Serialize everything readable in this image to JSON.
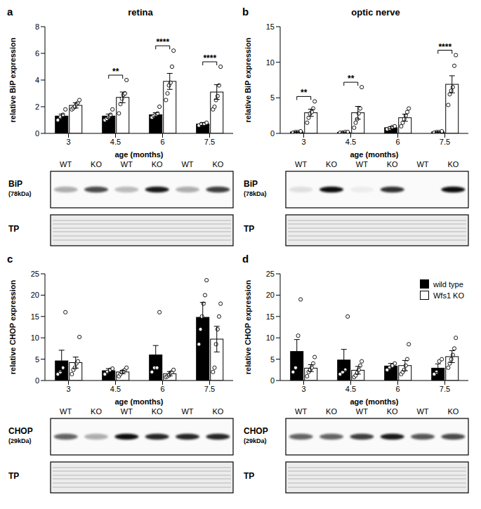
{
  "chart_data": [
    {
      "panel": "a",
      "type": "bar",
      "title": "retina",
      "x_label": "age (months)",
      "y_label": "relative BiP expression",
      "categories": [
        "3",
        "4.5",
        "6",
        "7.5"
      ],
      "ylim": [
        0,
        8
      ],
      "yticks": [
        0,
        2,
        4,
        6,
        8
      ],
      "series": [
        {
          "name": "wild type",
          "color": "#000000",
          "values": [
            1.3,
            1.3,
            1.4,
            0.7
          ],
          "error": [
            0.15,
            0.15,
            0.15,
            0.1
          ],
          "points": [
            [
              1.0,
              1.2,
              1.4,
              1.8
            ],
            [
              1.0,
              1.1,
              1.2,
              1.4,
              1.8
            ],
            [
              1.2,
              1.3,
              1.4,
              1.5,
              2.0
            ],
            [
              0.6,
              0.7,
              0.7,
              0.8
            ]
          ]
        },
        {
          "name": "Wfs1 KO",
          "color": "#ffffff",
          "values": [
            2.1,
            2.7,
            3.9,
            3.1
          ],
          "error": [
            0.2,
            0.4,
            0.6,
            0.55
          ],
          "points": [
            [
              1.8,
              1.9,
              2.0,
              2.2,
              2.3,
              2.5
            ],
            [
              1.5,
              2.2,
              2.6,
              2.9,
              3.0,
              4.0
            ],
            [
              2.5,
              3.0,
              3.6,
              3.8,
              5.0,
              6.2
            ],
            [
              1.8,
              2.0,
              2.5,
              2.8,
              3.6,
              5.0
            ]
          ]
        }
      ],
      "significance": [
        null,
        "**",
        "****",
        "****"
      ],
      "blot": {
        "protein": "BiP",
        "size": "(78kDa)",
        "loading": "TP",
        "lanes": [
          "WT",
          "KO",
          "WT",
          "KO",
          "WT",
          "KO"
        ],
        "band_intensity": [
          0.3,
          0.7,
          0.25,
          0.9,
          0.3,
          0.75
        ]
      }
    },
    {
      "panel": "b",
      "type": "bar",
      "title": "optic nerve",
      "x_label": "age (months)",
      "y_label": "relative BiP expression",
      "categories": [
        "3",
        "4.5",
        "6",
        "7.5"
      ],
      "ylim": [
        0,
        15
      ],
      "yticks": [
        0,
        5,
        10,
        15
      ],
      "series": [
        {
          "name": "wild type",
          "color": "#000000",
          "values": [
            0.2,
            0.15,
            0.8,
            0.2
          ],
          "error": [
            0.05,
            0.05,
            0.15,
            0.05
          ],
          "points": [
            [
              0.1,
              0.2,
              0.2,
              0.3
            ],
            [
              0.1,
              0.1,
              0.2,
              0.2
            ],
            [
              0.6,
              0.7,
              0.9,
              1.0
            ],
            [
              0.1,
              0.2,
              0.2,
              0.3
            ]
          ]
        },
        {
          "name": "Wfs1 KO",
          "color": "#ffffff",
          "values": [
            2.9,
            2.9,
            2.2,
            6.9
          ],
          "error": [
            0.5,
            0.9,
            0.5,
            1.2
          ],
          "points": [
            [
              1.5,
              2.2,
              2.8,
              3.0,
              3.5,
              4.5
            ],
            [
              0.8,
              1.5,
              2.0,
              2.8,
              3.5,
              6.5
            ],
            [
              1.0,
              1.5,
              2.0,
              2.5,
              3.0,
              3.5
            ],
            [
              4.0,
              5.5,
              6.0,
              6.5,
              9.5,
              11.0
            ]
          ]
        }
      ],
      "significance": [
        "**",
        "**",
        null,
        "****"
      ],
      "blot": {
        "protein": "BiP",
        "size": "(78kDa)",
        "loading": "TP",
        "lanes": [
          "WT",
          "KO",
          "WT",
          "KO",
          "WT",
          "KO"
        ],
        "band_intensity": [
          0.1,
          0.95,
          0.05,
          0.8,
          0.0,
          0.95
        ]
      }
    },
    {
      "panel": "c",
      "type": "bar",
      "x_label": "age (months)",
      "y_label": "relative CHOP expression",
      "categories": [
        "3",
        "4.5",
        "6",
        "7.5"
      ],
      "ylim": [
        0,
        25
      ],
      "yticks": [
        0,
        5,
        10,
        15,
        20,
        25
      ],
      "series": [
        {
          "name": "wild type",
          "color": "#000000",
          "values": [
            4.6,
            2.3,
            6.0,
            14.8
          ],
          "error": [
            2.5,
            0.5,
            2.2,
            3.5
          ],
          "points": [
            [
              1.5,
              2.0,
              3.0,
              16.0
            ],
            [
              1.5,
              2.0,
              2.5,
              2.8
            ],
            [
              2.0,
              3.0,
              3.0,
              16.0
            ],
            [
              8.5,
              12.0,
              15.0,
              18.0,
              20.0,
              23.5
            ]
          ]
        },
        {
          "name": "Wfs1 KO",
          "color": "#ffffff",
          "values": [
            4.2,
            2.0,
            1.6,
            9.7
          ],
          "error": [
            1.3,
            0.4,
            0.5,
            3.0
          ],
          "points": [
            [
              1.5,
              2.5,
              3.0,
              4.0,
              4.5,
              10.2
            ],
            [
              1.0,
              1.5,
              2.0,
              2.2,
              2.5,
              3.0
            ],
            [
              0.8,
              1.0,
              1.2,
              1.8,
              2.0,
              2.5
            ],
            [
              2.0,
              3.0,
              8.5,
              12.0,
              15.0,
              18.0
            ]
          ]
        }
      ],
      "blot": {
        "protein": "CHOP",
        "size": "(29kDa)",
        "loading": "TP",
        "lanes": [
          "WT",
          "KO",
          "WT",
          "KO",
          "WT",
          "KO"
        ],
        "band_intensity": [
          0.6,
          0.3,
          0.95,
          0.85,
          0.85,
          0.85
        ]
      }
    },
    {
      "panel": "d",
      "type": "bar",
      "x_label": "age (months)",
      "y_label": "relative CHOP expression",
      "categories": [
        "3",
        "4.5",
        "6",
        "7.5"
      ],
      "ylim": [
        0,
        25
      ],
      "yticks": [
        0,
        5,
        10,
        15,
        20,
        25
      ],
      "legend": "upper right",
      "series": [
        {
          "name": "wild type",
          "color": "#000000",
          "values": [
            6.8,
            4.8,
            3.4,
            2.9
          ],
          "error": [
            2.8,
            2.5,
            0.6,
            1.0
          ],
          "points": [
            [
              2.0,
              3.0,
              10.5,
              19.0
            ],
            [
              1.5,
              2.0,
              2.5,
              15.0
            ],
            [
              2.5,
              3.0,
              3.5,
              4.0
            ],
            [
              1.5,
              2.0,
              4.5,
              5.0
            ]
          ]
        },
        {
          "name": "Wfs1 KO",
          "color": "#ffffff",
          "values": [
            2.9,
            2.4,
            3.5,
            5.6
          ],
          "error": [
            0.8,
            0.9,
            1.2,
            1.4
          ],
          "points": [
            [
              1.0,
              2.0,
              2.5,
              3.0,
              4.0,
              5.5
            ],
            [
              0.8,
              1.2,
              1.8,
              2.5,
              3.5,
              4.5
            ],
            [
              1.5,
              2.0,
              2.5,
              3.5,
              5.0,
              8.5
            ],
            [
              3.0,
              4.0,
              5.0,
              6.0,
              7.5,
              10.0
            ]
          ]
        }
      ],
      "blot": {
        "protein": "CHOP",
        "size": "(29kDa)",
        "loading": "TP",
        "lanes": [
          "WT",
          "KO",
          "WT",
          "KO",
          "WT",
          "KO"
        ],
        "band_intensity": [
          0.6,
          0.6,
          0.75,
          0.9,
          0.65,
          0.7
        ]
      }
    }
  ]
}
